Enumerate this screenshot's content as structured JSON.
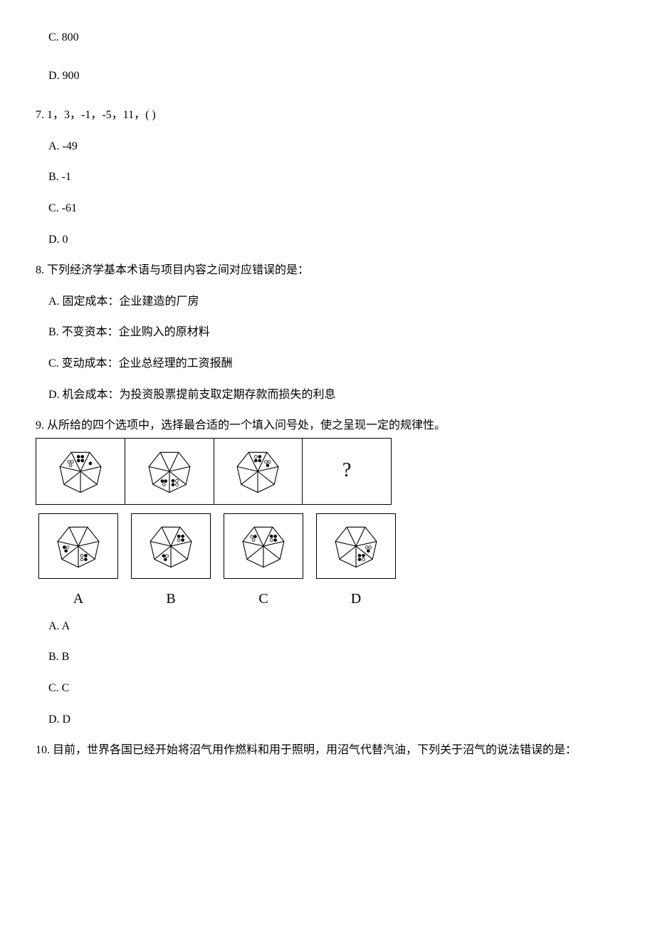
{
  "q6_options": {
    "c": "C. 800",
    "d": "D. 900"
  },
  "q7": {
    "text": "7. 1，3，-1，-5，11，(    )",
    "options": {
      "a": "A. -49",
      "b": "B. -1",
      "c": "C. -61",
      "d": "D. 0"
    }
  },
  "q8": {
    "text": "8. 下列经济学基本术语与项目内容之间对应错误的是：",
    "options": {
      "a": "A. 固定成本：企业建造的厂房",
      "b": "B. 不变资本：企业购入的原材料",
      "c": "C. 变动成本：企业总经理的工资报酬",
      "d": "D. 机会成本：为投资股票提前支取定期存款而损失的利息"
    }
  },
  "q9": {
    "text": "9. 从所给的四个选项中，选择最合适的一个填入问号处，使之呈现一定的规律性。",
    "qmark": "?",
    "labels": {
      "a": "A",
      "b": "B",
      "c": "C",
      "d": "D"
    },
    "options": {
      "a": "A. A",
      "b": "B. B",
      "c": "C. C",
      "d": "D. D"
    },
    "heptagon": {
      "stroke": "#000000",
      "stroke_width": 1.4,
      "fill_black": "#000000",
      "fill_white": "#ffffff",
      "dot_radius": 2.5
    }
  },
  "q10": {
    "text": "10. 目前，世界各国已经开始将沼气用作燃料和用于照明，用沼气代替汽油，下列关于沼气的说法错误的是："
  }
}
